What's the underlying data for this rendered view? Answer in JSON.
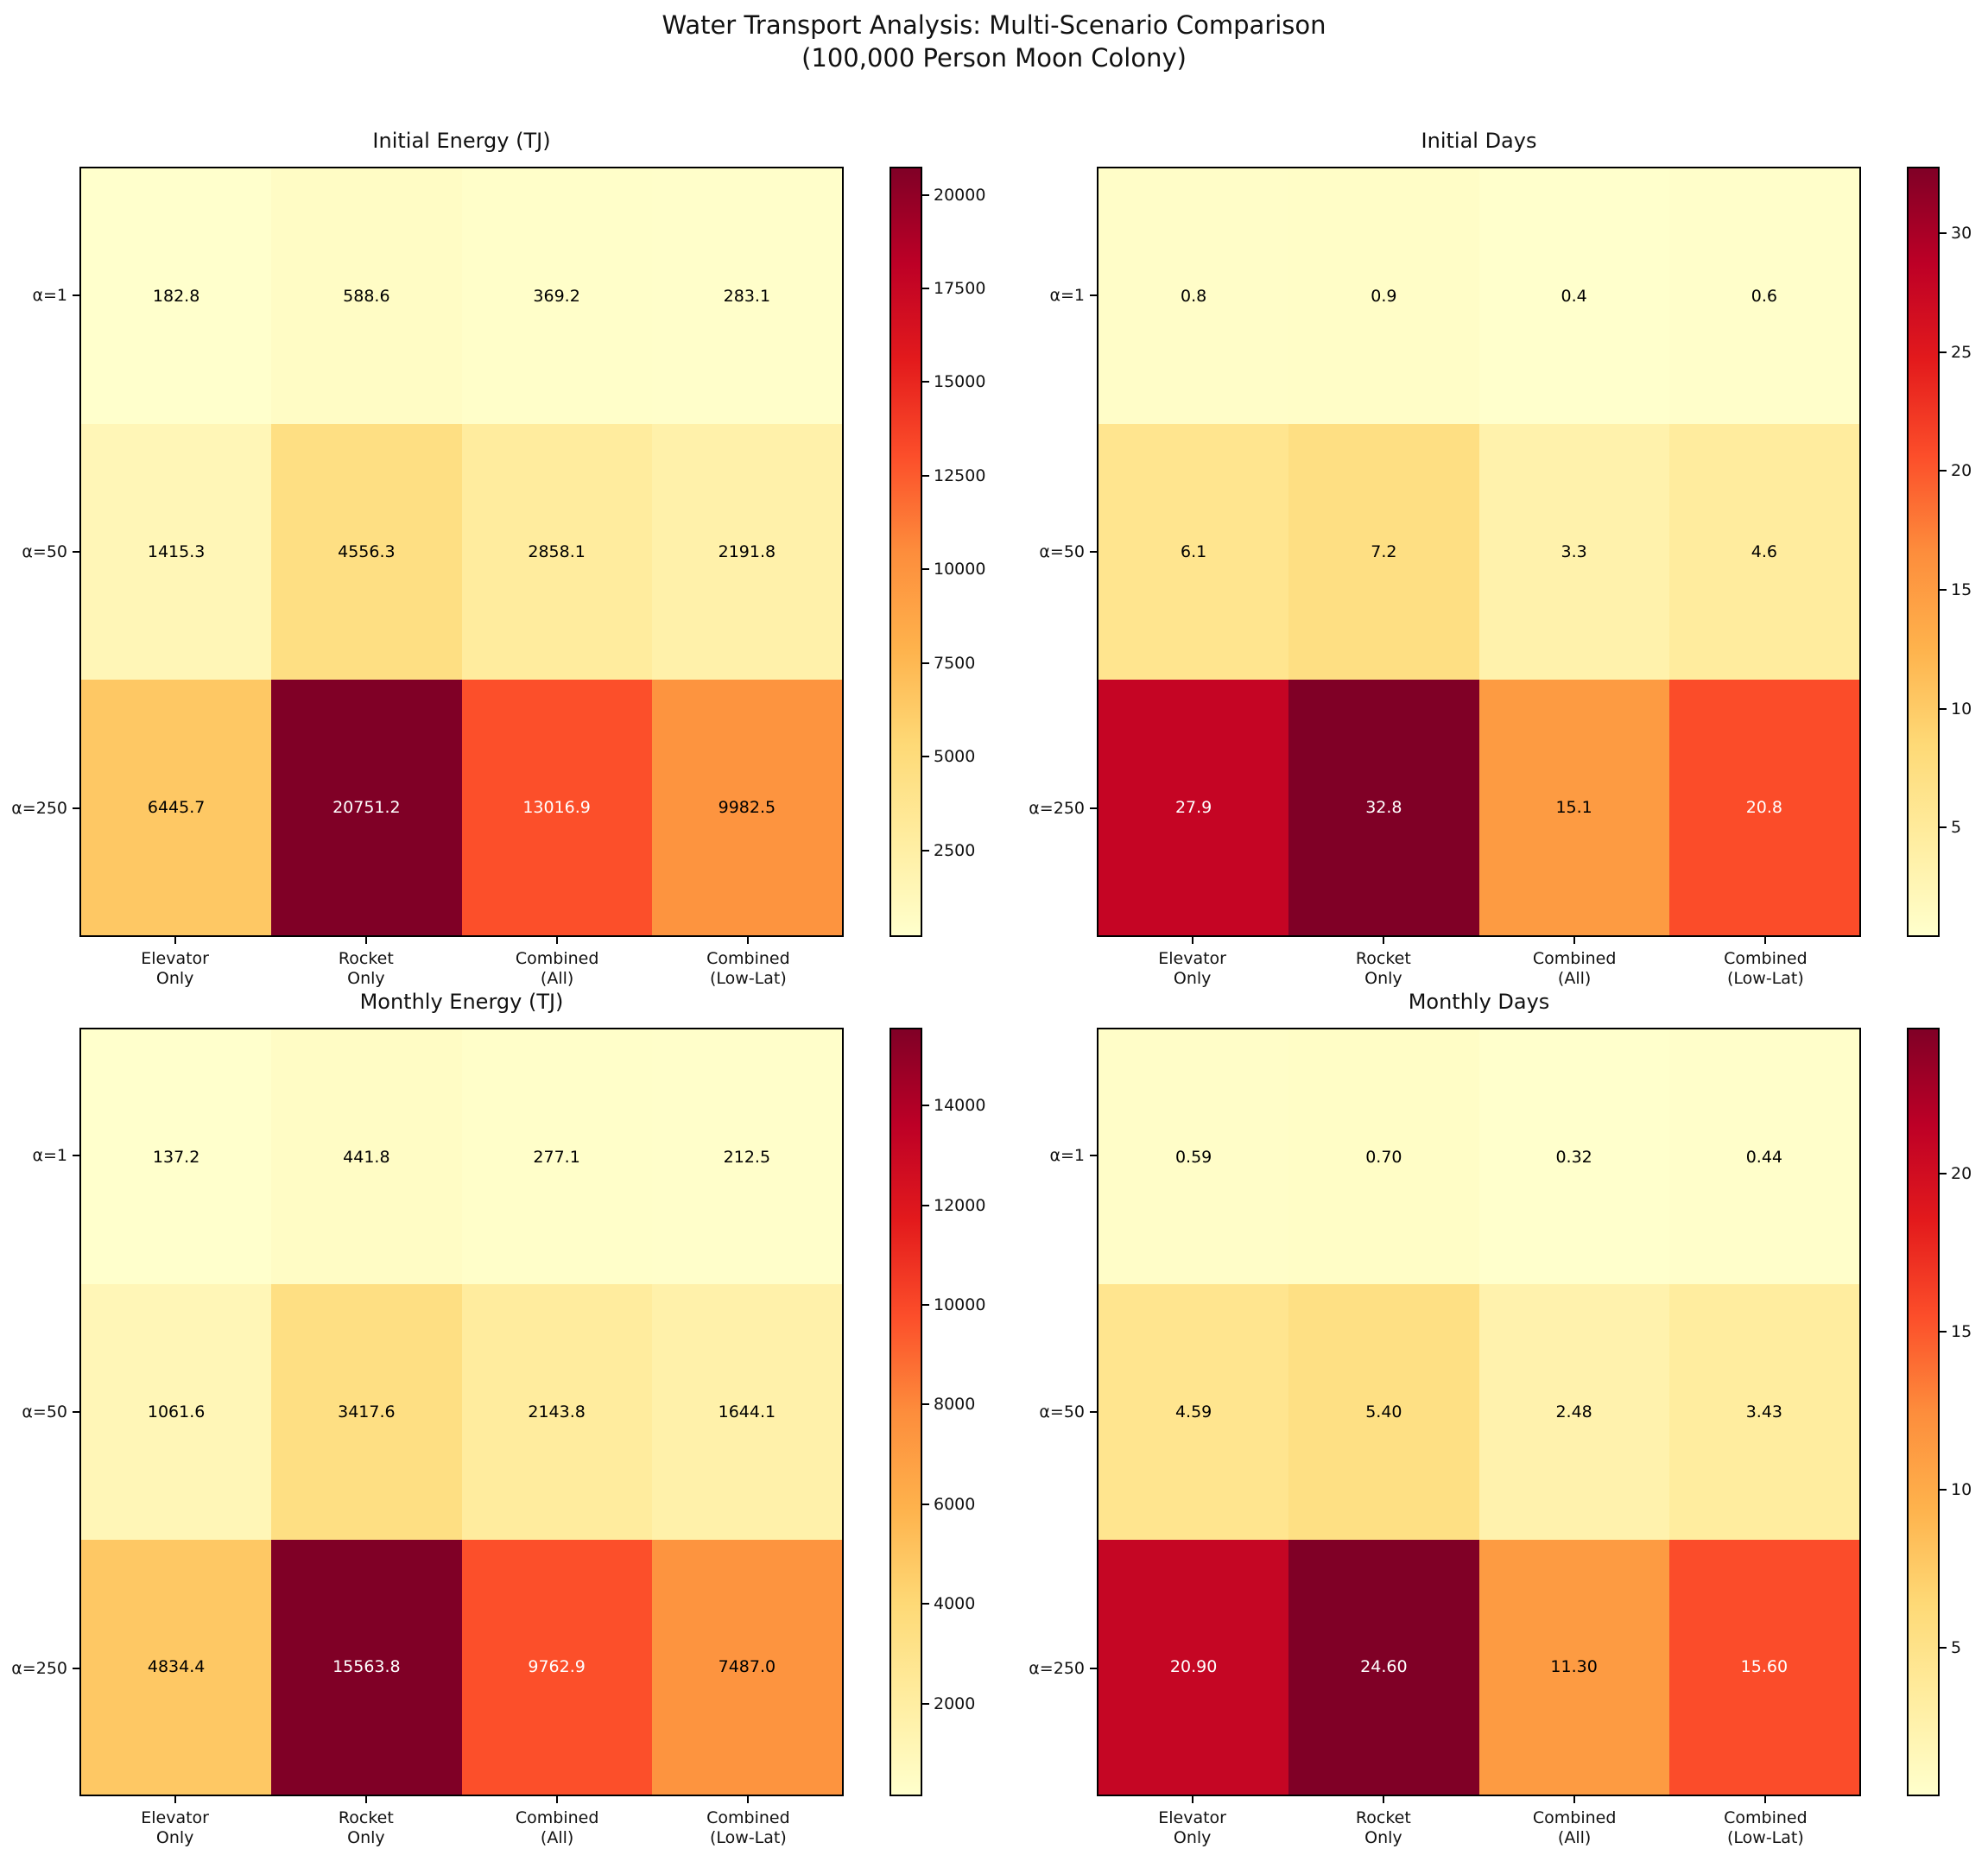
{
  "figure": {
    "title_line1": "Water Transport Analysis: Multi-Scenario Comparison",
    "title_line2": "(100,000 Person Moon Colony)"
  },
  "colors": {
    "colormap": "YlOrRd",
    "colormap_stops": [
      "#ffffcc",
      "#ffeda0",
      "#fed976",
      "#feb24c",
      "#fd8d3c",
      "#fc4e2a",
      "#e31a1c",
      "#bd0026",
      "#800026"
    ],
    "background": "#ffffff",
    "border": "#000000"
  },
  "chart_data": [
    {
      "type": "heatmap",
      "title": "Initial Energy (TJ)",
      "rows": [
        "α=1",
        "α=50",
        "α=250"
      ],
      "columns": [
        "Elevator\nOnly",
        "Rocket\nOnly",
        "Combined\n(All)",
        "Combined\n(Low-Lat)"
      ],
      "values": [
        [
          182.8,
          588.6,
          369.2,
          283.1
        ],
        [
          1415.3,
          4556.3,
          2858.1,
          2191.8
        ],
        [
          6445.7,
          20751.2,
          13016.9,
          9982.5
        ]
      ],
      "labels": [
        [
          "182.8",
          "588.6",
          "369.2",
          "283.1"
        ],
        [
          "1415.3",
          "4556.3",
          "2858.1",
          "2191.8"
        ],
        [
          "6445.7",
          "20751.2",
          "13016.9",
          "9982.5"
        ]
      ],
      "color_range": [
        182.8,
        20751.2
      ],
      "colorbar_ticks": [
        2500,
        5000,
        7500,
        10000,
        12500,
        15000,
        17500,
        20000
      ],
      "legend_position": "right-colorbar",
      "grid": false
    },
    {
      "type": "heatmap",
      "title": "Initial Days",
      "rows": [
        "α=1",
        "α=50",
        "α=250"
      ],
      "columns": [
        "Elevator\nOnly",
        "Rocket\nOnly",
        "Combined\n(All)",
        "Combined\n(Low-Lat)"
      ],
      "values": [
        [
          0.8,
          0.9,
          0.4,
          0.6
        ],
        [
          6.1,
          7.2,
          3.3,
          4.6
        ],
        [
          27.9,
          32.8,
          15.1,
          20.8
        ]
      ],
      "labels": [
        [
          "0.8",
          "0.9",
          "0.4",
          "0.6"
        ],
        [
          "6.1",
          "7.2",
          "3.3",
          "4.6"
        ],
        [
          "27.9",
          "32.8",
          "15.1",
          "20.8"
        ]
      ],
      "color_range": [
        0.4,
        32.8
      ],
      "colorbar_ticks": [
        5,
        10,
        15,
        20,
        25,
        30
      ],
      "legend_position": "right-colorbar",
      "grid": false
    },
    {
      "type": "heatmap",
      "title": "Monthly Energy (TJ)",
      "rows": [
        "α=1",
        "α=50",
        "α=250"
      ],
      "columns": [
        "Elevator\nOnly",
        "Rocket\nOnly",
        "Combined\n(All)",
        "Combined\n(Low-Lat)"
      ],
      "values": [
        [
          137.2,
          441.8,
          277.1,
          212.5
        ],
        [
          1061.6,
          3417.6,
          2143.8,
          1644.1
        ],
        [
          4834.4,
          15563.8,
          9762.9,
          7487.0
        ]
      ],
      "labels": [
        [
          "137.2",
          "441.8",
          "277.1",
          "212.5"
        ],
        [
          "1061.6",
          "3417.6",
          "2143.8",
          "1644.1"
        ],
        [
          "4834.4",
          "15563.8",
          "9762.9",
          "7487.0"
        ]
      ],
      "color_range": [
        137.2,
        15563.8
      ],
      "colorbar_ticks": [
        2000,
        4000,
        6000,
        8000,
        10000,
        12000,
        14000
      ],
      "legend_position": "right-colorbar",
      "grid": false
    },
    {
      "type": "heatmap",
      "title": "Monthly Days",
      "rows": [
        "α=1",
        "α=50",
        "α=250"
      ],
      "columns": [
        "Elevator\nOnly",
        "Rocket\nOnly",
        "Combined\n(All)",
        "Combined\n(Low-Lat)"
      ],
      "values": [
        [
          0.59,
          0.7,
          0.32,
          0.44
        ],
        [
          4.59,
          5.4,
          2.48,
          3.43
        ],
        [
          20.9,
          24.6,
          11.3,
          15.6
        ]
      ],
      "labels": [
        [
          "0.59",
          "0.70",
          "0.32",
          "0.44"
        ],
        [
          "4.59",
          "5.40",
          "2.48",
          "3.43"
        ],
        [
          "20.90",
          "24.60",
          "11.30",
          "15.60"
        ]
      ],
      "color_range": [
        0.32,
        24.6
      ],
      "colorbar_ticks": [
        5,
        10,
        15,
        20
      ],
      "legend_position": "right-colorbar",
      "grid": false
    }
  ]
}
